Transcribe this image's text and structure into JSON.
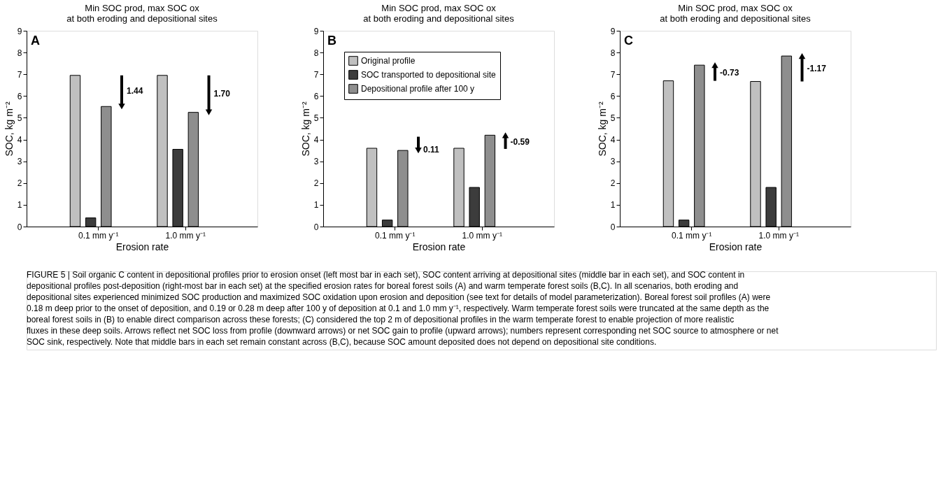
{
  "chart_data": [
    {
      "type": "bar",
      "title": "Min SOC prod, max SOC ox\nat both eroding and depositional sites",
      "xlabel": "Erosion rate",
      "ylabel": "SOC, kg m⁻²",
      "categories": [
        "0.1 mm y⁻¹",
        "1.0 mm y⁻¹"
      ],
      "ylim": [
        0,
        9
      ],
      "yticks": [
        0,
        1,
        2,
        3,
        4,
        5,
        6,
        7,
        8,
        9
      ],
      "grid": false,
      "series": [
        {
          "color": "#c0c0c0",
          "values": [
            6.95,
            6.95
          ]
        },
        {
          "color": "#3c3c3c",
          "values": [
            0.4,
            3.55
          ]
        },
        {
          "color": "#8e8e8e",
          "values": [
            5.52,
            5.25
          ]
        }
      ],
      "annotations": [
        "A",
        "1.44",
        "1.70",
        "FIGURE 5 | Soil organic C content in depositional profiles prior to erosion onset (left most bar in each set), SOC content arriving at depositional sites (middle bar in each set), and SOC content in depositional profiles post-deposition (right-most bar in each set) at the specified erosion rates for boreal forest soils (A) and warm temperate forest soils (B,C). In all scenarios, both eroding and depositional sites experienced minimized SOC production and maximized SOC oxidation upon erosion and deposition (see text for details of model parameterization). Boreal forest soil profiles (A) were 0.18 m deep prior to the onset of deposition, and 0.19 or 0.28 m deep after 100 y of deposition at 0.1 and 1.0 mm y⁻¹, respectively. Warm temperate forest soils were truncated at the same depth as the boreal forest soils in (B) to enable direct comparison across these forests; (C) considered the top 2 m of depositional profiles in the warm temperate forest to enable projection of more realistic fluxes in these deep soils. Arrows reflect net SOC loss from profile (downward arrows) or net SOC gain to profile (upward arrows); numbers represent corresponding net SOC source to atmosphere or net SOC sink, respectively. Note that middle bars in each set remain constant across (B,C), because SOC amount deposited does not depend on depositional site conditions."
      ]
    },
    {
      "type": "bar",
      "title": "Min SOC prod, max SOC ox\nat both eroding and depositional sites",
      "xlabel": "Erosion rate",
      "ylabel": "SOC, kg m⁻²",
      "categories": [
        "0.1 mm y⁻¹",
        "1.0 mm y⁻¹"
      ],
      "ylim": [
        0,
        9
      ],
      "yticks": [
        0,
        1,
        2,
        3,
        4,
        5,
        6,
        7,
        8,
        9
      ],
      "grid": false,
      "legend": "top left",
      "series": [
        {
          "name": "Original profile",
          "color": "#c0c0c0",
          "values": [
            3.6,
            3.6
          ]
        },
        {
          "name": "SOC transported to depositional site",
          "color": "#3c3c3c",
          "values": [
            0.3,
            1.8
          ]
        },
        {
          "name": "Depositional profile after 100 y",
          "color": "#8e8e8e",
          "values": [
            3.5,
            4.2
          ]
        }
      ],
      "annotations": [
        "B",
        "0.11",
        "-0.59"
      ]
    },
    {
      "type": "bar",
      "title": "Min SOC prod, max SOC ox\nat both eroding and depositional sites",
      "xlabel": "Erosion rate",
      "ylabel": "SOC, kg m⁻²",
      "categories": [
        "0.1 mm y⁻¹",
        "1.0 mm y⁻¹"
      ],
      "ylim": [
        0,
        9
      ],
      "yticks": [
        0,
        1,
        2,
        3,
        4,
        5,
        6,
        7,
        8,
        9
      ],
      "grid": false,
      "series": [
        {
          "color": "#c0c0c0",
          "values": [
            6.7,
            6.67
          ]
        },
        {
          "color": "#3c3c3c",
          "values": [
            0.3,
            1.8
          ]
        },
        {
          "color": "#8e8e8e",
          "values": [
            7.42,
            7.84
          ]
        }
      ],
      "annotations": [
        "C",
        "-0.73",
        "-1.17"
      ]
    }
  ]
}
